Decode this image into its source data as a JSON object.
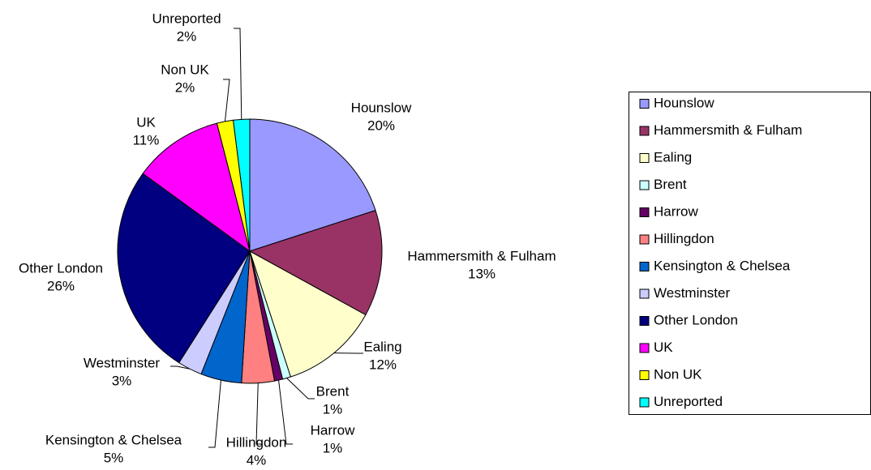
{
  "chart_data": {
    "type": "pie",
    "categories": [
      "Hounslow",
      "Hammersmith & Fulham",
      "Ealing",
      "Brent",
      "Harrow",
      "Hillingdon",
      "Kensington & Chelsea",
      "Westminster",
      "Other London",
      "UK",
      "Non UK",
      "Unreported"
    ],
    "values": [
      20,
      13,
      12,
      1,
      1,
      4,
      5,
      3,
      26,
      11,
      2,
      2
    ],
    "value_labels": [
      "20%",
      "13%",
      "12%",
      "1%",
      "1%",
      "4%",
      "5%",
      "3%",
      "26%",
      "11%",
      "2%",
      "2%"
    ],
    "colors": [
      "#9999ff",
      "#993366",
      "#ffffcc",
      "#ccffff",
      "#660066",
      "#ff8080",
      "#0066cc",
      "#ccccff",
      "#000080",
      "#ff00ff",
      "#ffff00",
      "#00ffff"
    ],
    "legend": "right"
  }
}
